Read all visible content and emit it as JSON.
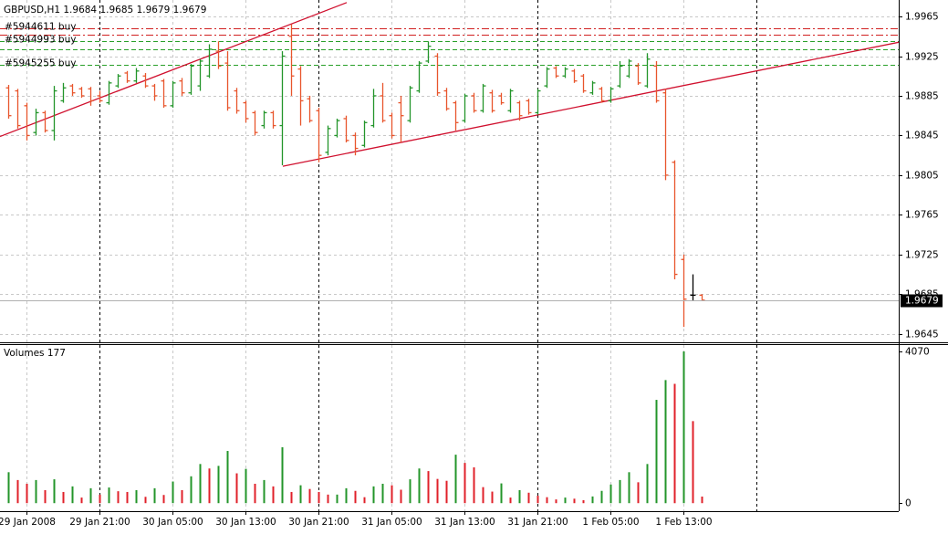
{
  "chart_data": [
    {
      "type": "ohlc",
      "title": "GBPUSD,H1",
      "categories": [
        null,
        null,
        "29 Jan 2008",
        null,
        null,
        null,
        null,
        null,
        null,
        null,
        "29 Jan 21:00",
        null,
        null,
        null,
        null,
        null,
        null,
        null,
        "30 Jan 05:00",
        null,
        null,
        null,
        null,
        null,
        null,
        null,
        "30 Jan 13:00",
        null,
        null,
        null,
        null,
        null,
        null,
        null,
        "30 Jan 21:00",
        null,
        null,
        null,
        null,
        null,
        null,
        null,
        "31 Jan 05:00",
        null,
        null,
        null,
        null,
        null,
        null,
        null,
        "31 Jan 13:00",
        null,
        null,
        null,
        null,
        null,
        null,
        null,
        "31 Jan 21:00",
        null,
        null,
        null,
        null,
        null,
        null,
        null,
        "1 Feb 05:00",
        null,
        null,
        null,
        null,
        null,
        null,
        null,
        "1 Feb 13:00",
        null,
        null
      ],
      "open": [
        1.9893,
        1.989,
        1.9875,
        1.9848,
        1.9868,
        1.985,
        1.988,
        1.9895,
        1.9892,
        1.9892,
        1.9885,
        1.9878,
        1.9895,
        1.9908,
        1.99,
        1.9905,
        1.9895,
        1.99,
        1.9875,
        1.99,
        1.9888,
        1.9895,
        1.9905,
        1.993,
        1.9918,
        1.989,
        1.9878,
        1.9868,
        1.9855,
        1.9868,
        1.9855,
        1.9945,
        1.9912,
        1.9882,
        1.987,
        1.9828,
        1.9845,
        1.9862,
        1.9845,
        1.9835,
        1.9855,
        1.9885,
        1.9865,
        1.9878,
        1.986,
        1.989,
        1.992,
        1.9925,
        1.989,
        1.9878,
        1.986,
        1.9885,
        1.987,
        1.9888,
        1.9885,
        1.987,
        1.9878,
        1.988,
        1.9868,
        1.9895,
        1.9913,
        1.9905,
        1.991,
        1.9905,
        1.9888,
        1.9892,
        1.988,
        1.9895,
        1.9905,
        1.9915,
        1.9895,
        1.9915,
        1.9888,
        1.9818,
        1.972,
        1.9684,
        1.9684
      ],
      "high": [
        1.9896,
        1.9892,
        1.9878,
        1.9872,
        1.987,
        1.9895,
        1.9898,
        1.9897,
        1.9894,
        1.9894,
        1.989,
        1.99,
        1.9907,
        1.991,
        1.9913,
        1.9908,
        1.9897,
        1.9902,
        1.99,
        1.9903,
        1.9917,
        1.9922,
        1.9937,
        1.994,
        1.993,
        1.9893,
        1.988,
        1.987,
        1.987,
        1.987,
        1.993,
        1.9957,
        1.9915,
        1.9885,
        1.9873,
        1.9855,
        1.9862,
        1.9865,
        1.9848,
        1.986,
        1.9892,
        1.9898,
        1.9868,
        1.9885,
        1.9895,
        1.992,
        1.994,
        1.9928,
        1.9893,
        1.988,
        1.9887,
        1.9888,
        1.9897,
        1.9891,
        1.9888,
        1.9892,
        1.988,
        1.9882,
        1.9892,
        1.9914,
        1.9915,
        1.9914,
        1.9912,
        1.9907,
        1.99,
        1.9894,
        1.9894,
        1.992,
        1.9922,
        1.9918,
        1.9928,
        1.992,
        1.9892,
        1.982,
        1.9725,
        1.9705,
        1.9685
      ],
      "low": [
        1.9862,
        1.9852,
        1.984,
        1.9845,
        1.9848,
        1.984,
        1.9878,
        1.9885,
        1.9883,
        1.9875,
        1.9878,
        1.9876,
        1.9893,
        1.9898,
        1.9898,
        1.9893,
        1.988,
        1.9873,
        1.9873,
        1.9885,
        1.9886,
        1.989,
        1.9903,
        1.9912,
        1.987,
        1.9867,
        1.9858,
        1.9845,
        1.9852,
        1.9852,
        1.9815,
        1.9885,
        1.9855,
        1.9858,
        1.9818,
        1.9825,
        1.9843,
        1.9838,
        1.9825,
        1.9833,
        1.9853,
        1.9858,
        1.9842,
        1.9838,
        1.9858,
        1.9888,
        1.9918,
        1.9885,
        1.987,
        1.985,
        1.9858,
        1.9868,
        1.9868,
        1.9868,
        1.9876,
        1.9868,
        1.986,
        1.9866,
        1.9866,
        1.9893,
        1.9903,
        1.9903,
        1.9898,
        1.9888,
        1.9886,
        1.9878,
        1.9878,
        1.9893,
        1.9903,
        1.9896,
        1.9893,
        1.9878,
        1.98,
        1.97,
        1.9652,
        1.9678,
        1.9679
      ],
      "close": [
        1.9865,
        1.9855,
        1.9845,
        1.9868,
        1.985,
        1.989,
        1.9893,
        1.9888,
        1.9885,
        1.988,
        1.988,
        1.9898,
        1.9905,
        1.99,
        1.991,
        1.9895,
        1.9885,
        1.9875,
        1.9898,
        1.9888,
        1.9915,
        1.992,
        1.9932,
        1.9915,
        1.9873,
        1.987,
        1.9862,
        1.9848,
        1.9868,
        1.9855,
        1.9925,
        1.9905,
        1.988,
        1.986,
        1.9825,
        1.9852,
        1.986,
        1.984,
        1.9832,
        1.9858,
        1.9885,
        1.986,
        1.9845,
        1.9865,
        1.9893,
        1.9918,
        1.9935,
        1.9888,
        1.9872,
        1.9858,
        1.9885,
        1.987,
        1.9895,
        1.987,
        1.9878,
        1.989,
        1.9865,
        1.9868,
        1.989,
        1.9912,
        1.9905,
        1.9912,
        1.99,
        1.989,
        1.9898,
        1.988,
        1.9892,
        1.9915,
        1.992,
        1.9898,
        1.9922,
        1.988,
        1.9805,
        1.9705,
        1.968,
        1.9684,
        1.9679
      ],
      "up_color": "#23952a",
      "down_color": "#e8552c",
      "doji_color": "#000000",
      "ylim": [
        1.96365,
        1.99816
      ],
      "yticks": [
        1.9965,
        1.9925,
        1.9885,
        1.9845,
        1.9805,
        1.9765,
        1.9725,
        1.9685,
        1.9645
      ],
      "grid": true,
      "trendlines": [
        {
          "color": "#d0102e",
          "x": [
            -0.9,
            37.1
          ],
          "y": [
            1.9844,
            1.9979
          ]
        },
        {
          "color": "#d0102e",
          "x": [
            30.1,
            97.6
          ],
          "y": [
            1.9814,
            1.9939
          ]
        }
      ],
      "order_lines": [
        {
          "label": "#5944611 buy",
          "price": 1.9953,
          "color": "#d02020",
          "style": "dashdot"
        },
        {
          "price": 1.9947,
          "color": "#d02020",
          "style": "dashdot"
        },
        {
          "label": "#5944993 buy",
          "price": 1.994,
          "color": "#2aa02a",
          "style": "dash"
        },
        {
          "price": 1.9932,
          "color": "#2aa02a",
          "style": "dash"
        },
        {
          "label": "#5945255 buy",
          "price": 1.9916,
          "color": "#2aa02a",
          "style": "dash"
        }
      ]
    },
    {
      "type": "bar",
      "title": "Volumes",
      "values": [
        830,
        620,
        520,
        620,
        350,
        640,
        300,
        450,
        150,
        400,
        230,
        420,
        320,
        300,
        350,
        170,
        400,
        220,
        580,
        350,
        720,
        1050,
        930,
        1000,
        1400,
        800,
        920,
        520,
        620,
        450,
        1500,
        300,
        480,
        380,
        300,
        230,
        230,
        400,
        330,
        160,
        450,
        520,
        480,
        360,
        640,
        930,
        860,
        650,
        600,
        1300,
        1080,
        960,
        430,
        310,
        530,
        150,
        350,
        280,
        200,
        160,
        100,
        150,
        120,
        80,
        180,
        330,
        500,
        620,
        830,
        560,
        1050,
        2770,
        3300,
        3200,
        4070,
        2200,
        177
      ],
      "up_color": "#23952a",
      "down_color": "#e0202a",
      "ylim": [
        -215,
        4240
      ],
      "yticks": [
        0,
        4070
      ]
    }
  ]
}
